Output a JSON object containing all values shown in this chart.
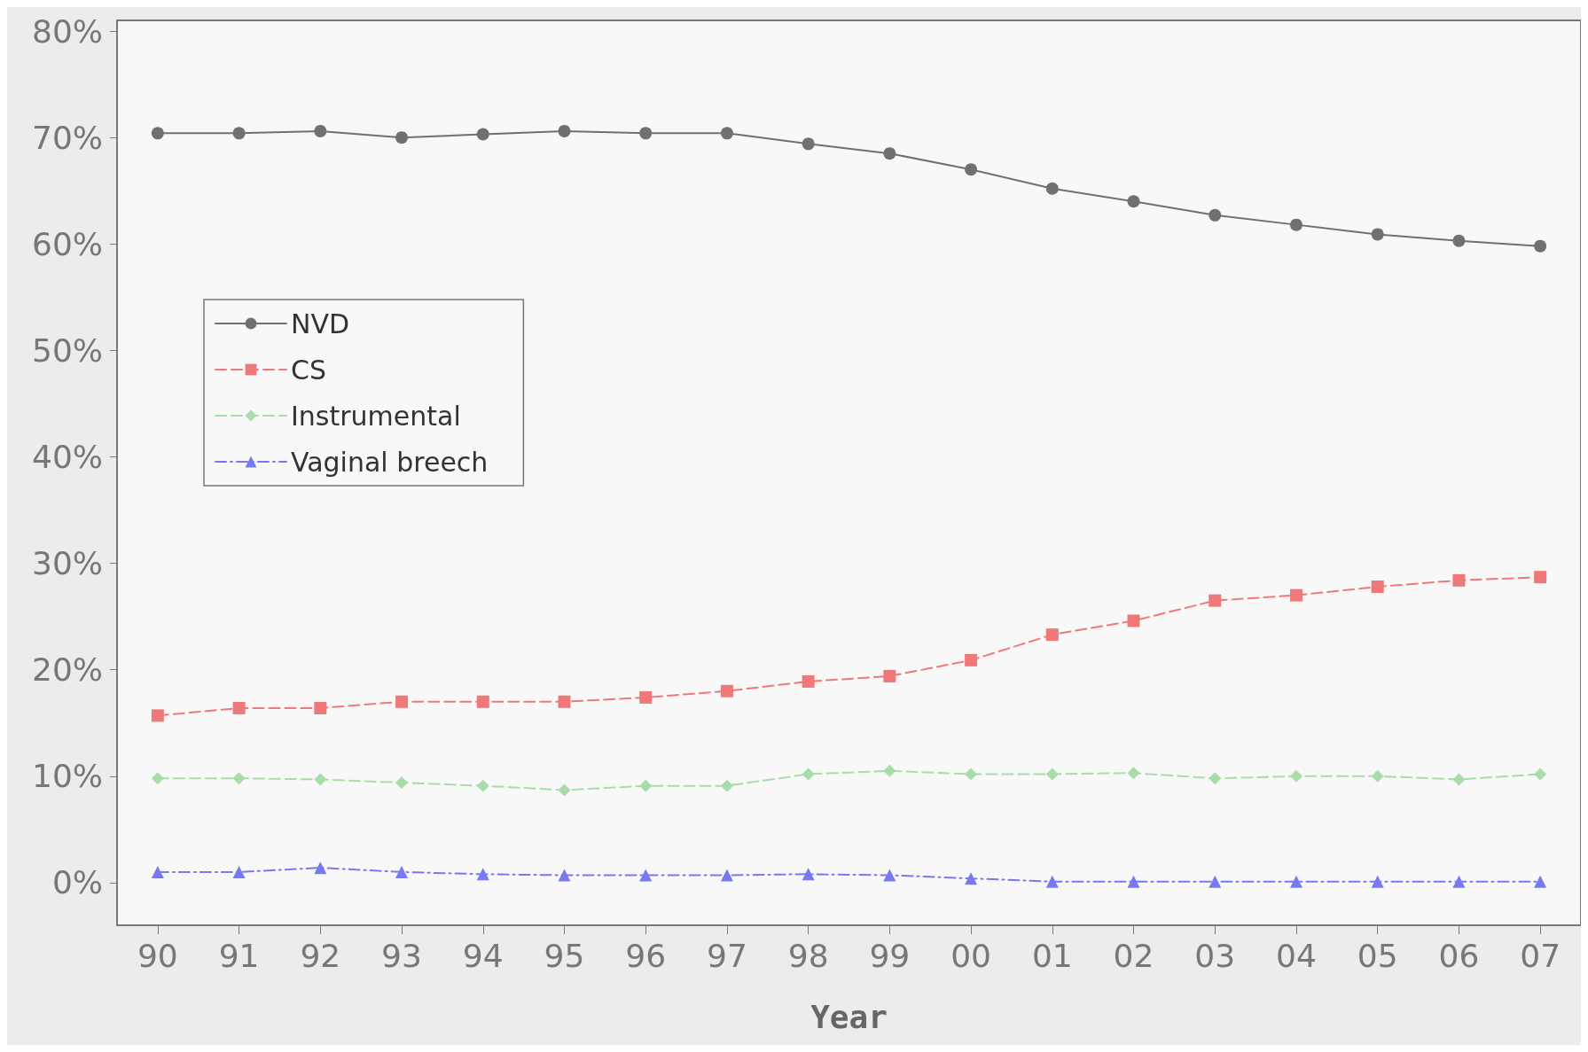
{
  "chart_data": {
    "type": "line",
    "xlabel": "Year",
    "categories": [
      "90",
      "91",
      "92",
      "93",
      "94",
      "95",
      "96",
      "97",
      "98",
      "99",
      "00",
      "01",
      "02",
      "03",
      "04",
      "05",
      "06",
      "07"
    ],
    "series": [
      {
        "name": "NVD",
        "color": "#707070",
        "marker": "circle",
        "line_style": "solid",
        "values": [
          70.4,
          70.4,
          70.6,
          70.0,
          70.3,
          70.6,
          70.4,
          70.4,
          69.4,
          68.5,
          67.0,
          65.2,
          64.0,
          62.7,
          61.8,
          60.9,
          60.3,
          59.8
        ]
      },
      {
        "name": "CS",
        "color": "#f07878",
        "marker": "square",
        "line_style": "dashed",
        "values": [
          15.7,
          16.4,
          16.4,
          17.0,
          17.0,
          17.0,
          17.4,
          18.0,
          18.9,
          19.4,
          20.9,
          23.3,
          24.6,
          26.5,
          27.0,
          27.8,
          28.4,
          28.7
        ]
      },
      {
        "name": "Instrumental",
        "color": "#a8dca8",
        "marker": "diamond",
        "line_style": "dashed",
        "values": [
          9.8,
          9.8,
          9.7,
          9.4,
          9.1,
          8.7,
          9.1,
          9.1,
          10.2,
          10.5,
          10.2,
          10.2,
          10.3,
          9.8,
          10.0,
          10.0,
          9.7,
          10.2
        ]
      },
      {
        "name": "Vaginal breech",
        "color": "#7878f0",
        "marker": "triangle",
        "line_style": "dashdot",
        "values": [
          1.0,
          1.0,
          1.4,
          1.0,
          0.8,
          0.7,
          0.7,
          0.7,
          0.8,
          0.7,
          0.4,
          0.1,
          0.1,
          0.1,
          0.1,
          0.1,
          0.1,
          0.1
        ]
      }
    ],
    "ylim": [
      -4,
      81
    ],
    "yticks": [
      {
        "value": 0,
        "label": "0%"
      },
      {
        "value": 10,
        "label": "10%"
      },
      {
        "value": 20,
        "label": "20%"
      },
      {
        "value": 30,
        "label": "30%"
      },
      {
        "value": 40,
        "label": "40%"
      },
      {
        "value": 50,
        "label": "50%"
      },
      {
        "value": 60,
        "label": "60%"
      },
      {
        "value": 70,
        "label": "70%"
      },
      {
        "value": 80,
        "label": "80%"
      }
    ],
    "grid": false,
    "legend": "top left"
  }
}
